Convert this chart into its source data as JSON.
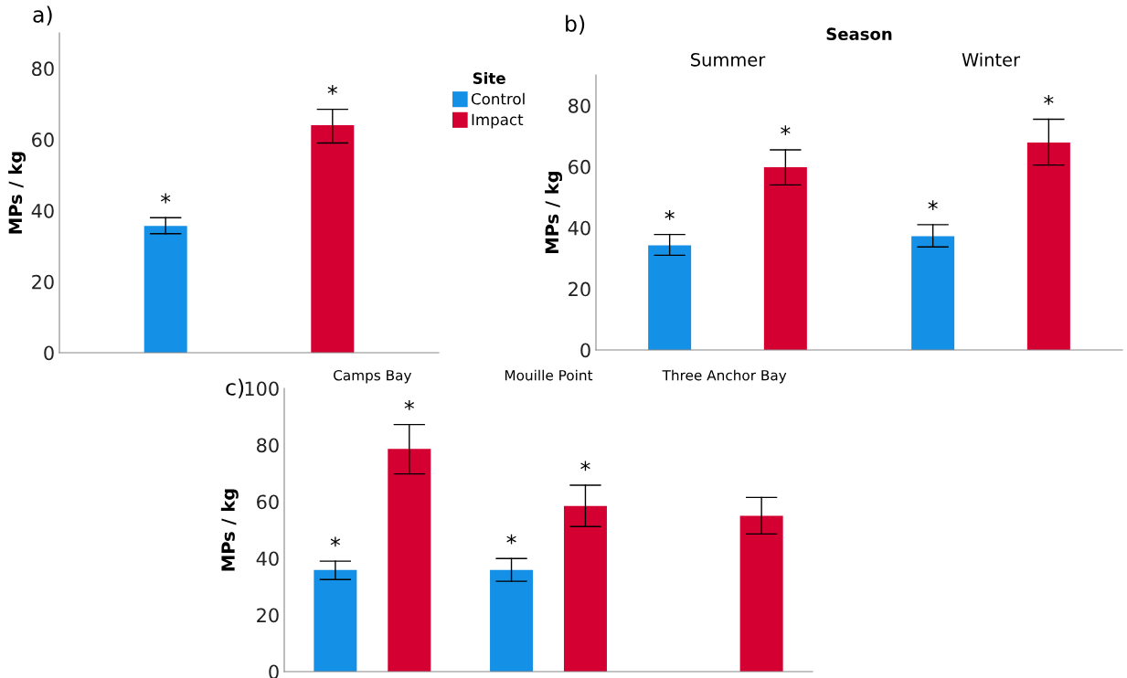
{
  "chart_data": [
    {
      "type": "bar",
      "title": "a)",
      "ylabel": "MPs / kg",
      "categories": [
        null
      ],
      "ylim": [
        0,
        90
      ],
      "yticks": [
        0,
        20,
        40,
        60,
        80
      ],
      "grid": false,
      "legend": "right",
      "legend_title": "Site",
      "series": [
        {
          "name": "Control",
          "color": "#1490e6",
          "values": [
            35.7
          ],
          "errors": [
            [
              33.5,
              38.0
            ]
          ],
          "value_labels": [
            "*"
          ]
        },
        {
          "name": "Impact",
          "color": "#d50032",
          "values": [
            64.0
          ],
          "errors": [
            [
              59.0,
              68.5
            ]
          ],
          "value_labels": [
            "*"
          ]
        }
      ]
    },
    {
      "type": "bar",
      "title": "b)",
      "xlabel": "Season",
      "ylabel": "MPs / kg",
      "categories": [
        "Summer",
        "Winter"
      ],
      "ylim": [
        0,
        90
      ],
      "yticks": [
        0,
        20,
        40,
        60,
        80
      ],
      "grid": false,
      "series": [
        {
          "color": "#1490e6",
          "values": [
            34.2,
            37.2
          ],
          "errors": [
            [
              31.0,
              37.8
            ],
            [
              33.7,
              41.0
            ]
          ],
          "value_labels": [
            "*",
            "*"
          ]
        },
        {
          "color": "#d50032",
          "values": [
            59.8,
            67.9
          ],
          "errors": [
            [
              54.0,
              65.5
            ],
            [
              60.5,
              75.5
            ]
          ],
          "value_labels": [
            "*",
            "*"
          ]
        }
      ]
    },
    {
      "type": "bar",
      "title": "c)",
      "ylabel": "MPs / kg",
      "categories": [
        "Camps Bay",
        "Mouille Point",
        "Three Anchor Bay"
      ],
      "ylim": [
        0,
        100
      ],
      "yticks": [
        0,
        20,
        40,
        60,
        80,
        100
      ],
      "grid": false,
      "series": [
        {
          "color": "#1490e6",
          "values": [
            35.9,
            35.9,
            null
          ],
          "errors": [
            [
              32.5,
              39.0
            ],
            [
              31.9,
              39.9
            ],
            null
          ],
          "value_labels": [
            "*",
            "*",
            null
          ]
        },
        {
          "color": "#d50032",
          "values": [
            78.6,
            58.5,
            55.0
          ],
          "errors": [
            [
              69.8,
              87.2
            ],
            [
              51.2,
              65.8
            ],
            [
              48.6,
              61.5
            ]
          ],
          "value_labels": [
            "*",
            "*",
            null
          ]
        }
      ]
    }
  ]
}
